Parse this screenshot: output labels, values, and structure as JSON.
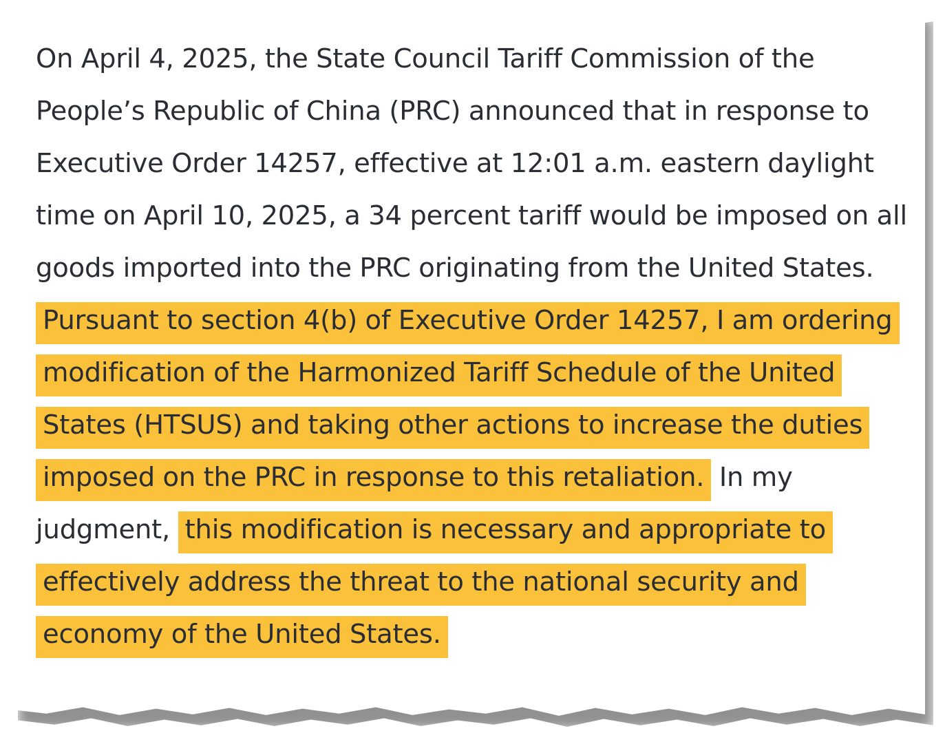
{
  "document": {
    "segments": [
      "On April 4, 2025, the State Council Tariff Commission of the People’s Republic of China (PRC) announced that in response to Executive Order 14257, effective at 12:01 a.m. eastern daylight time on April 10, 2025, a 34 percent tariff would be imposed on all goods imported into the PRC originating from the United States. ",
      "Pursuant to section 4(b) of Executive Order 14257, I am ordering modification of the Harmonized Tariff Schedule of the United States (HTSUS) and taking other actions to increase the duties imposed on the PRC in response to this retaliation.",
      " In my judgment, ",
      "this modification is necessary and appropriate to effectively address the threat to the national security and economy of the United States."
    ],
    "highlight_color": "#fbc13a",
    "text_color": "#2a2d33"
  }
}
